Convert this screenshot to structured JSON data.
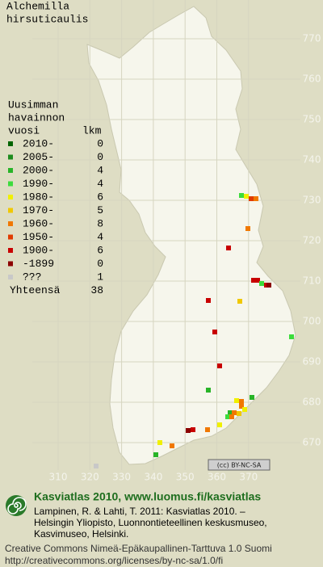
{
  "title": [
    "Alchemilla",
    "hirsuticaulis"
  ],
  "map": {
    "x_labels": [
      310,
      320,
      330,
      340,
      350,
      360,
      370
    ],
    "y_labels": [
      770,
      760,
      750,
      740,
      730,
      720,
      710,
      700,
      690,
      680,
      670
    ]
  },
  "legend": {
    "header": [
      "Uusimman",
      "havainnon",
      "vuosi"
    ],
    "count_header": "lkm",
    "rows": [
      {
        "label": "2010-",
        "count": 0,
        "color": "#006400"
      },
      {
        "label": "2005-",
        "count": 0,
        "color": "#1e8c1e"
      },
      {
        "label": "2000-",
        "count": 4,
        "color": "#28b428"
      },
      {
        "label": "1990-",
        "count": 4,
        "color": "#3cdc3c"
      },
      {
        "label": "1980-",
        "count": 6,
        "color": "#f0f000"
      },
      {
        "label": "1970-",
        "count": 5,
        "color": "#f0c800"
      },
      {
        "label": "1960-",
        "count": 8,
        "color": "#f07800"
      },
      {
        "label": "1950-",
        "count": 4,
        "color": "#e03c00"
      },
      {
        "label": "1900-",
        "count": 6,
        "color": "#c80000"
      },
      {
        "label": "-1899",
        "count": 0,
        "color": "#8c0000"
      },
      {
        "label": "???",
        "count": 1,
        "color": "#c8c8c8"
      }
    ],
    "total": {
      "label": "Yhteensä",
      "count": 38
    }
  },
  "license_badge": "(cc) BY-NC-SA",
  "footer": {
    "heading": "Kasviatlas 2010, www.luomus.fi/kasviatlas",
    "citation": [
      "Lampinen, R. & Lahti, T. 2011: Kasviatlas 2010. –",
      "Helsingin Yliopisto, Luonnontieteellinen keskusmuseo,",
      "Kasvimuseo, Helsinki."
    ],
    "license": [
      "Creative Commons Nimeä-Epäkaupallinen-Tarttuva 1.0 Suomi",
      "http://creativecommons.org/licenses/by-nc-sa/1.0/fi"
    ]
  }
}
